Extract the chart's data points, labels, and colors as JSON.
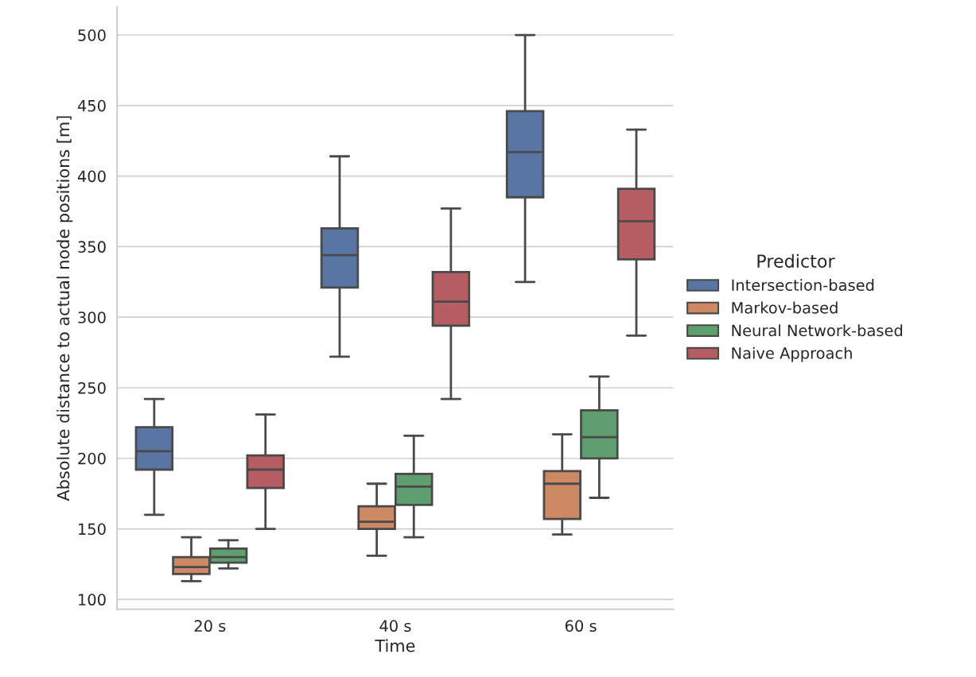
{
  "chart_data": {
    "type": "box",
    "xlabel": "Time",
    "ylabel": "Absolute distance to actual node positions [m]",
    "legend_title": "Predictor",
    "categories": [
      "20 s",
      "40 s",
      "60 s"
    ],
    "series": [
      {
        "name": "Intersection-based",
        "color": "#5975a4",
        "boxes": [
          {
            "low": 160,
            "q1": 192,
            "median": 205,
            "q3": 222,
            "high": 242
          },
          {
            "low": 272,
            "q1": 321,
            "median": 344,
            "q3": 363,
            "high": 414
          },
          {
            "low": 325,
            "q1": 385,
            "median": 417,
            "q3": 446,
            "high": 500
          }
        ]
      },
      {
        "name": "Markov-based",
        "color": "#cc8963",
        "boxes": [
          {
            "low": 113,
            "q1": 118,
            "median": 123,
            "q3": 130,
            "high": 144
          },
          {
            "low": 131,
            "q1": 150,
            "median": 155,
            "q3": 166,
            "high": 182
          },
          {
            "low": 146,
            "q1": 157,
            "median": 182,
            "q3": 191,
            "high": 217
          }
        ]
      },
      {
        "name": "Neural Network-based",
        "color": "#5f9e6e",
        "boxes": [
          {
            "low": 122,
            "q1": 126,
            "median": 130,
            "q3": 136,
            "high": 142
          },
          {
            "low": 144,
            "q1": 167,
            "median": 180,
            "q3": 189,
            "high": 216
          },
          {
            "low": 172,
            "q1": 200,
            "median": 215,
            "q3": 234,
            "high": 258
          }
        ]
      },
      {
        "name": "Naive Approach",
        "color": "#b55d60",
        "boxes": [
          {
            "low": 150,
            "q1": 179,
            "median": 192,
            "q3": 202,
            "high": 231
          },
          {
            "low": 242,
            "q1": 294,
            "median": 311,
            "q3": 332,
            "high": 377
          },
          {
            "low": 287,
            "q1": 341,
            "median": 368,
            "q3": 391,
            "high": 433
          }
        ]
      }
    ],
    "ylim": [
      93,
      520
    ],
    "yticks": [
      100,
      150,
      200,
      250,
      300,
      350,
      400,
      450,
      500
    ],
    "grid": "y",
    "legend": "right"
  }
}
